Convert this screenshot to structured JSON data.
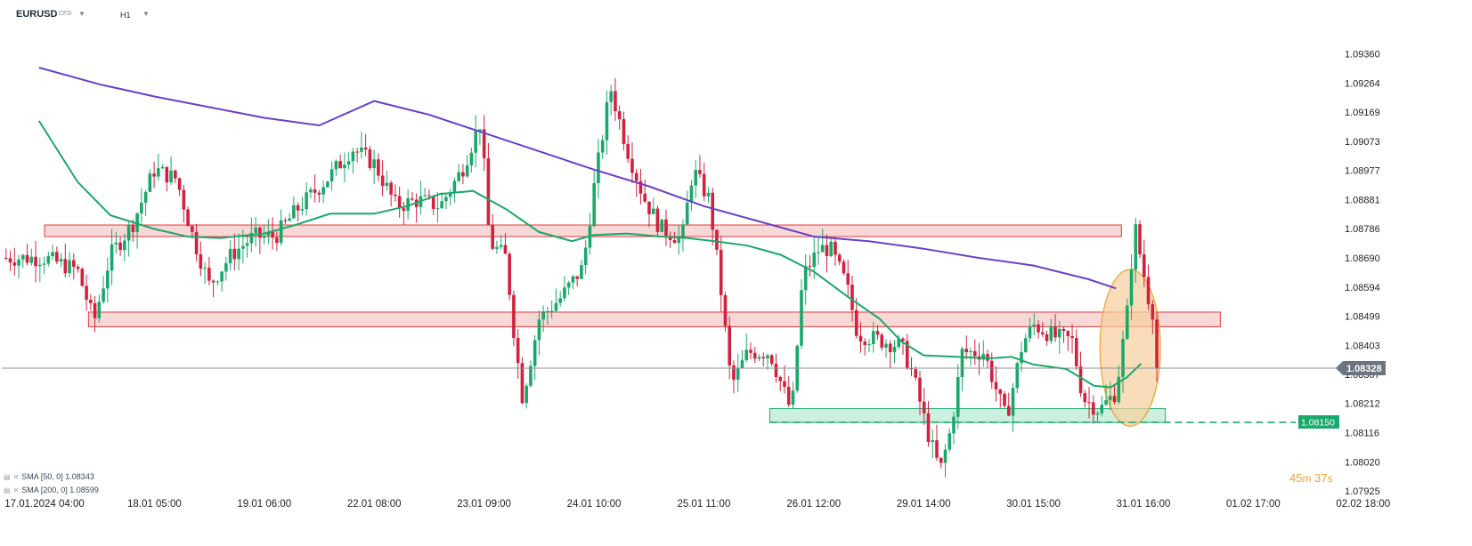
{
  "header": {
    "symbol": "EURUSD",
    "symbol_type": "CFD",
    "timeframe": "H1"
  },
  "indicators": [
    {
      "label": "SMA [50, 0] 1.08343",
      "color": "#1aa86a"
    },
    {
      "label": "SMA [200, 0] 1.08599",
      "color": "#6b3fc9"
    }
  ],
  "timer": {
    "minutes": "45",
    "m_unit": "m",
    "seconds": "37",
    "s_unit": "s"
  },
  "chart_data": {
    "type": "candlestick",
    "ylim": [
      1.07925,
      1.0942
    ],
    "y_ticks": [
      "1.09360",
      "1.09264",
      "1.09169",
      "1.09073",
      "1.08977",
      "1.08881",
      "1.08786",
      "1.08690",
      "1.08594",
      "1.08499",
      "1.08403",
      "1.08307",
      "1.08212",
      "1.08116",
      "1.08020",
      "1.07925"
    ],
    "x_ticks": [
      "17.01.2024 04:00",
      "18.01 05:00",
      "19.01 06:00",
      "22.01 08:00",
      "23.01 09:00",
      "24.01 10:00",
      "25.01 11:00",
      "26.01 12:00",
      "29.01 14:00",
      "30.01 15:00",
      "31.01 16:00",
      "01.02 17:00",
      "02.02 18:00"
    ],
    "current_price": "1.08328",
    "support_label": "1.08150",
    "colors": {
      "up": "#1aa86a",
      "down": "#d0213d",
      "sma50": "#1aa86a",
      "sma200": "#6b3fc9",
      "resistance_fill": "#f6c9c9",
      "resistance_stroke": "#e03a3a",
      "support_fill": "#c7eedc",
      "support_stroke": "#1aa86a",
      "highlight_fill": "#f7cf9c",
      "highlight_stroke": "#f0a030",
      "price_tag": "#6b7480",
      "support_tag": "#1aa86a"
    },
    "zones": [
      {
        "kind": "resistance",
        "from_tick": 0,
        "to_tick": 9.8,
        "y_top": 1.08798,
        "y_bottom": 1.0876
      },
      {
        "kind": "resistance",
        "from_tick": 0.4,
        "to_tick": 10.7,
        "y_top": 1.08512,
        "y_bottom": 1.08464
      },
      {
        "kind": "support",
        "from_tick": 6.6,
        "to_tick": 10.2,
        "y_top": 1.08195,
        "y_bottom": 1.0815
      }
    ],
    "support_line": 1.0815,
    "highlight": {
      "center_tick": 9.88,
      "center_y": 1.08395,
      "span_ticks": 0.55,
      "span_y": 0.00515
    },
    "sma200": [
      [
        -0.05,
        1.09315
      ],
      [
        0.5,
        1.0926
      ],
      [
        1,
        1.0922
      ],
      [
        1.5,
        1.09185
      ],
      [
        2,
        1.0915
      ],
      [
        2.5,
        1.09125
      ],
      [
        3,
        1.09205
      ],
      [
        3.5,
        1.0916
      ],
      [
        4,
        1.091
      ],
      [
        4.5,
        1.0904
      ],
      [
        5,
        1.0898
      ],
      [
        5.5,
        1.08925
      ],
      [
        6,
        1.0886
      ],
      [
        6.5,
        1.0881
      ],
      [
        7,
        1.0876
      ],
      [
        7.5,
        1.08745
      ],
      [
        8,
        1.0872
      ],
      [
        8.5,
        1.0869
      ],
      [
        9,
        1.08665
      ],
      [
        9.5,
        1.0862
      ],
      [
        9.75,
        1.0859
      ]
    ],
    "sma50": [
      [
        -0.05,
        1.0914
      ],
      [
        0.3,
        1.0894
      ],
      [
        0.6,
        1.0883
      ],
      [
        1,
        1.08785
      ],
      [
        1.3,
        1.0876
      ],
      [
        1.6,
        1.08755
      ],
      [
        2,
        1.0877
      ],
      [
        2.3,
        1.088
      ],
      [
        2.6,
        1.08835
      ],
      [
        3,
        1.08835
      ],
      [
        3.3,
        1.0886
      ],
      [
        3.6,
        1.089
      ],
      [
        3.9,
        1.0891
      ],
      [
        4.2,
        1.0885
      ],
      [
        4.5,
        1.08775
      ],
      [
        4.8,
        1.08745
      ],
      [
        5,
        1.08765
      ],
      [
        5.3,
        1.0877
      ],
      [
        5.6,
        1.0876
      ],
      [
        5.85,
        1.08755
      ],
      [
        6.1,
        1.08745
      ],
      [
        6.4,
        1.0873
      ],
      [
        6.7,
        1.087
      ],
      [
        7,
        1.08645
      ],
      [
        7.3,
        1.08565
      ],
      [
        7.6,
        1.0849
      ],
      [
        7.8,
        1.08415
      ],
      [
        8,
        1.0837
      ],
      [
        8.3,
        1.08365
      ],
      [
        8.6,
        1.0836
      ],
      [
        8.8,
        1.08365
      ],
      [
        9,
        1.0834
      ],
      [
        9.3,
        1.08325
      ],
      [
        9.55,
        1.0827
      ],
      [
        9.7,
        1.08265
      ],
      [
        9.85,
        1.08298
      ],
      [
        9.98,
        1.08343
      ]
    ],
    "price_path": [
      [
        0,
        1.0869
      ],
      [
        0.3,
        1.0865
      ],
      [
        0.45,
        1.0848
      ],
      [
        0.6,
        1.087
      ],
      [
        0.8,
        1.088
      ],
      [
        1,
        1.0898
      ],
      [
        1.2,
        1.0895
      ],
      [
        1.35,
        1.0876
      ],
      [
        1.5,
        1.086
      ],
      [
        1.7,
        1.087
      ],
      [
        1.9,
        1.0876
      ],
      [
        2.1,
        1.0876
      ],
      [
        2.3,
        1.0885
      ],
      [
        2.6,
        1.0896
      ],
      [
        2.8,
        1.0905
      ],
      [
        3,
        1.09
      ],
      [
        3.2,
        1.0886
      ],
      [
        3.4,
        1.0888
      ],
      [
        3.6,
        1.0886
      ],
      [
        3.8,
        1.0898
      ],
      [
        3.97,
        1.0914
      ],
      [
        4.05,
        1.0874
      ],
      [
        4.2,
        1.0869
      ],
      [
        4.28,
        1.0842
      ],
      [
        4.35,
        1.0823
      ],
      [
        4.5,
        1.0849
      ],
      [
        4.7,
        1.0856
      ],
      [
        4.9,
        1.0866
      ],
      [
        5,
        1.0892
      ],
      [
        5.15,
        1.0925
      ],
      [
        5.3,
        1.0905
      ],
      [
        5.45,
        1.0889
      ],
      [
        5.6,
        1.0879
      ],
      [
        5.8,
        1.0875
      ],
      [
        5.9,
        1.0898
      ],
      [
        6.05,
        1.0888
      ],
      [
        6.15,
        1.086
      ],
      [
        6.25,
        1.0827
      ],
      [
        6.4,
        1.0838
      ],
      [
        6.6,
        1.0838
      ],
      [
        6.8,
        1.0818
      ],
      [
        6.9,
        1.0863
      ],
      [
        7.05,
        1.0872
      ],
      [
        7.15,
        1.0872
      ],
      [
        7.3,
        1.086
      ],
      [
        7.4,
        1.0844
      ],
      [
        7.6,
        1.0842
      ],
      [
        7.8,
        1.084
      ],
      [
        7.9,
        1.0831
      ],
      [
        8.05,
        1.081
      ],
      [
        8.15,
        1.0799
      ],
      [
        8.25,
        1.0813
      ],
      [
        8.35,
        1.0838
      ],
      [
        8.55,
        1.0838
      ],
      [
        8.75,
        1.0816
      ],
      [
        8.9,
        1.0841
      ],
      [
        9,
        1.0847
      ],
      [
        9.2,
        1.0843
      ],
      [
        9.35,
        1.0842
      ],
      [
        9.45,
        1.0823
      ],
      [
        9.6,
        1.0819
      ],
      [
        9.75,
        1.0825
      ],
      [
        9.85,
        1.085
      ],
      [
        9.92,
        1.088
      ],
      [
        9.97,
        1.087
      ],
      [
        10.05,
        1.0855
      ],
      [
        10.12,
        1.0848
      ],
      [
        10.15,
        1.08328
      ]
    ]
  }
}
